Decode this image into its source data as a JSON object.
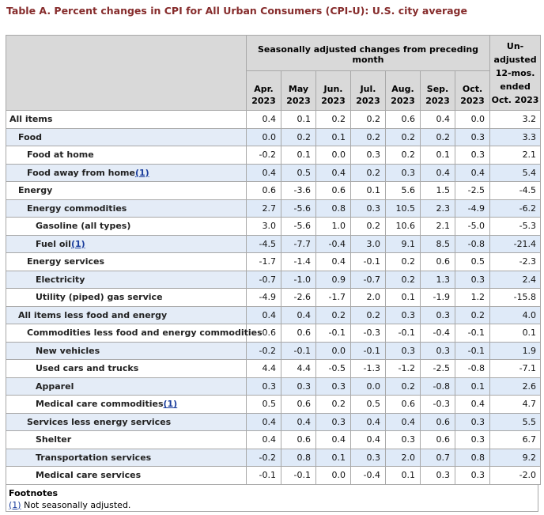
{
  "title": "Table A. Percent changes in CPI for All Urban Consumers (CPI-U): U.S. city average",
  "header": {
    "group_label": "Seasonally adjusted changes from preceding month",
    "months": [
      {
        "m": "Apr.",
        "y": "2023"
      },
      {
        "m": "May",
        "y": "2023"
      },
      {
        "m": "Jun.",
        "y": "2023"
      },
      {
        "m": "Jul.",
        "y": "2023"
      },
      {
        "m": "Aug.",
        "y": "2023"
      },
      {
        "m": "Sep.",
        "y": "2023"
      },
      {
        "m": "Oct.",
        "y": "2023"
      }
    ],
    "unadjusted": {
      "l1": "Un-",
      "l2": "adjusted",
      "l3": "12-mos.",
      "l4": "ended",
      "l5": "Oct. 2023"
    }
  },
  "rows": [
    {
      "label": "All items",
      "indent": 0,
      "fn": "",
      "values": [
        "0.4",
        "0.1",
        "0.2",
        "0.2",
        "0.6",
        "0.4",
        "0.0",
        "3.2"
      ]
    },
    {
      "label": "Food",
      "indent": 1,
      "fn": "",
      "values": [
        "0.0",
        "0.2",
        "0.1",
        "0.2",
        "0.2",
        "0.2",
        "0.3",
        "3.3"
      ]
    },
    {
      "label": "Food at home",
      "indent": 2,
      "fn": "",
      "values": [
        "-0.2",
        "0.1",
        "0.0",
        "0.3",
        "0.2",
        "0.1",
        "0.3",
        "2.1"
      ]
    },
    {
      "label": "Food away from home",
      "indent": 2,
      "fn": "(1)",
      "values": [
        "0.4",
        "0.5",
        "0.4",
        "0.2",
        "0.3",
        "0.4",
        "0.4",
        "5.4"
      ]
    },
    {
      "label": "Energy",
      "indent": 1,
      "fn": "",
      "values": [
        "0.6",
        "-3.6",
        "0.6",
        "0.1",
        "5.6",
        "1.5",
        "-2.5",
        "-4.5"
      ]
    },
    {
      "label": "Energy commodities",
      "indent": 2,
      "fn": "",
      "values": [
        "2.7",
        "-5.6",
        "0.8",
        "0.3",
        "10.5",
        "2.3",
        "-4.9",
        "-6.2"
      ]
    },
    {
      "label": "Gasoline (all types)",
      "indent": 3,
      "fn": "",
      "values": [
        "3.0",
        "-5.6",
        "1.0",
        "0.2",
        "10.6",
        "2.1",
        "-5.0",
        "-5.3"
      ]
    },
    {
      "label": "Fuel oil",
      "indent": 3,
      "fn": "(1)",
      "values": [
        "-4.5",
        "-7.7",
        "-0.4",
        "3.0",
        "9.1",
        "8.5",
        "-0.8",
        "-21.4"
      ]
    },
    {
      "label": "Energy services",
      "indent": 2,
      "fn": "",
      "values": [
        "-1.7",
        "-1.4",
        "0.4",
        "-0.1",
        "0.2",
        "0.6",
        "0.5",
        "-2.3"
      ]
    },
    {
      "label": "Electricity",
      "indent": 3,
      "fn": "",
      "values": [
        "-0.7",
        "-1.0",
        "0.9",
        "-0.7",
        "0.2",
        "1.3",
        "0.3",
        "2.4"
      ]
    },
    {
      "label": "Utility (piped) gas service",
      "indent": 3,
      "fn": "",
      "values": [
        "-4.9",
        "-2.6",
        "-1.7",
        "2.0",
        "0.1",
        "-1.9",
        "1.2",
        "-15.8"
      ]
    },
    {
      "label": "All items less food and energy",
      "indent": 1,
      "fn": "",
      "values": [
        "0.4",
        "0.4",
        "0.2",
        "0.2",
        "0.3",
        "0.3",
        "0.2",
        "4.0"
      ]
    },
    {
      "label": "Commodities less food and energy commodities",
      "indent": 2,
      "fn": "",
      "values": [
        "0.6",
        "0.6",
        "-0.1",
        "-0.3",
        "-0.1",
        "-0.4",
        "-0.1",
        "0.1"
      ]
    },
    {
      "label": "New vehicles",
      "indent": 3,
      "fn": "",
      "values": [
        "-0.2",
        "-0.1",
        "0.0",
        "-0.1",
        "0.3",
        "0.3",
        "-0.1",
        "1.9"
      ]
    },
    {
      "label": "Used cars and trucks",
      "indent": 3,
      "fn": "",
      "values": [
        "4.4",
        "4.4",
        "-0.5",
        "-1.3",
        "-1.2",
        "-2.5",
        "-0.8",
        "-7.1"
      ]
    },
    {
      "label": "Apparel",
      "indent": 3,
      "fn": "",
      "values": [
        "0.3",
        "0.3",
        "0.3",
        "0.0",
        "0.2",
        "-0.8",
        "0.1",
        "2.6"
      ]
    },
    {
      "label": "Medical care commodities",
      "indent": 3,
      "fn": "(1)",
      "values": [
        "0.5",
        "0.6",
        "0.2",
        "0.5",
        "0.6",
        "-0.3",
        "0.4",
        "4.7"
      ]
    },
    {
      "label": "Services less energy services",
      "indent": 2,
      "fn": "",
      "values": [
        "0.4",
        "0.4",
        "0.3",
        "0.4",
        "0.4",
        "0.6",
        "0.3",
        "5.5"
      ]
    },
    {
      "label": "Shelter",
      "indent": 3,
      "fn": "",
      "values": [
        "0.4",
        "0.6",
        "0.4",
        "0.4",
        "0.3",
        "0.6",
        "0.3",
        "6.7"
      ]
    },
    {
      "label": "Transportation services",
      "indent": 3,
      "fn": "",
      "values": [
        "-0.2",
        "0.8",
        "0.1",
        "0.3",
        "2.0",
        "0.7",
        "0.8",
        "9.2"
      ]
    },
    {
      "label": "Medical care services",
      "indent": 3,
      "fn": "",
      "values": [
        "-0.1",
        "-0.1",
        "0.0",
        "-0.4",
        "0.1",
        "0.3",
        "0.3",
        "-2.0"
      ]
    }
  ],
  "footnotes": {
    "title": "Footnotes",
    "items": [
      {
        "ref": "(1)",
        "text": " Not seasonally adjusted."
      }
    ]
  }
}
